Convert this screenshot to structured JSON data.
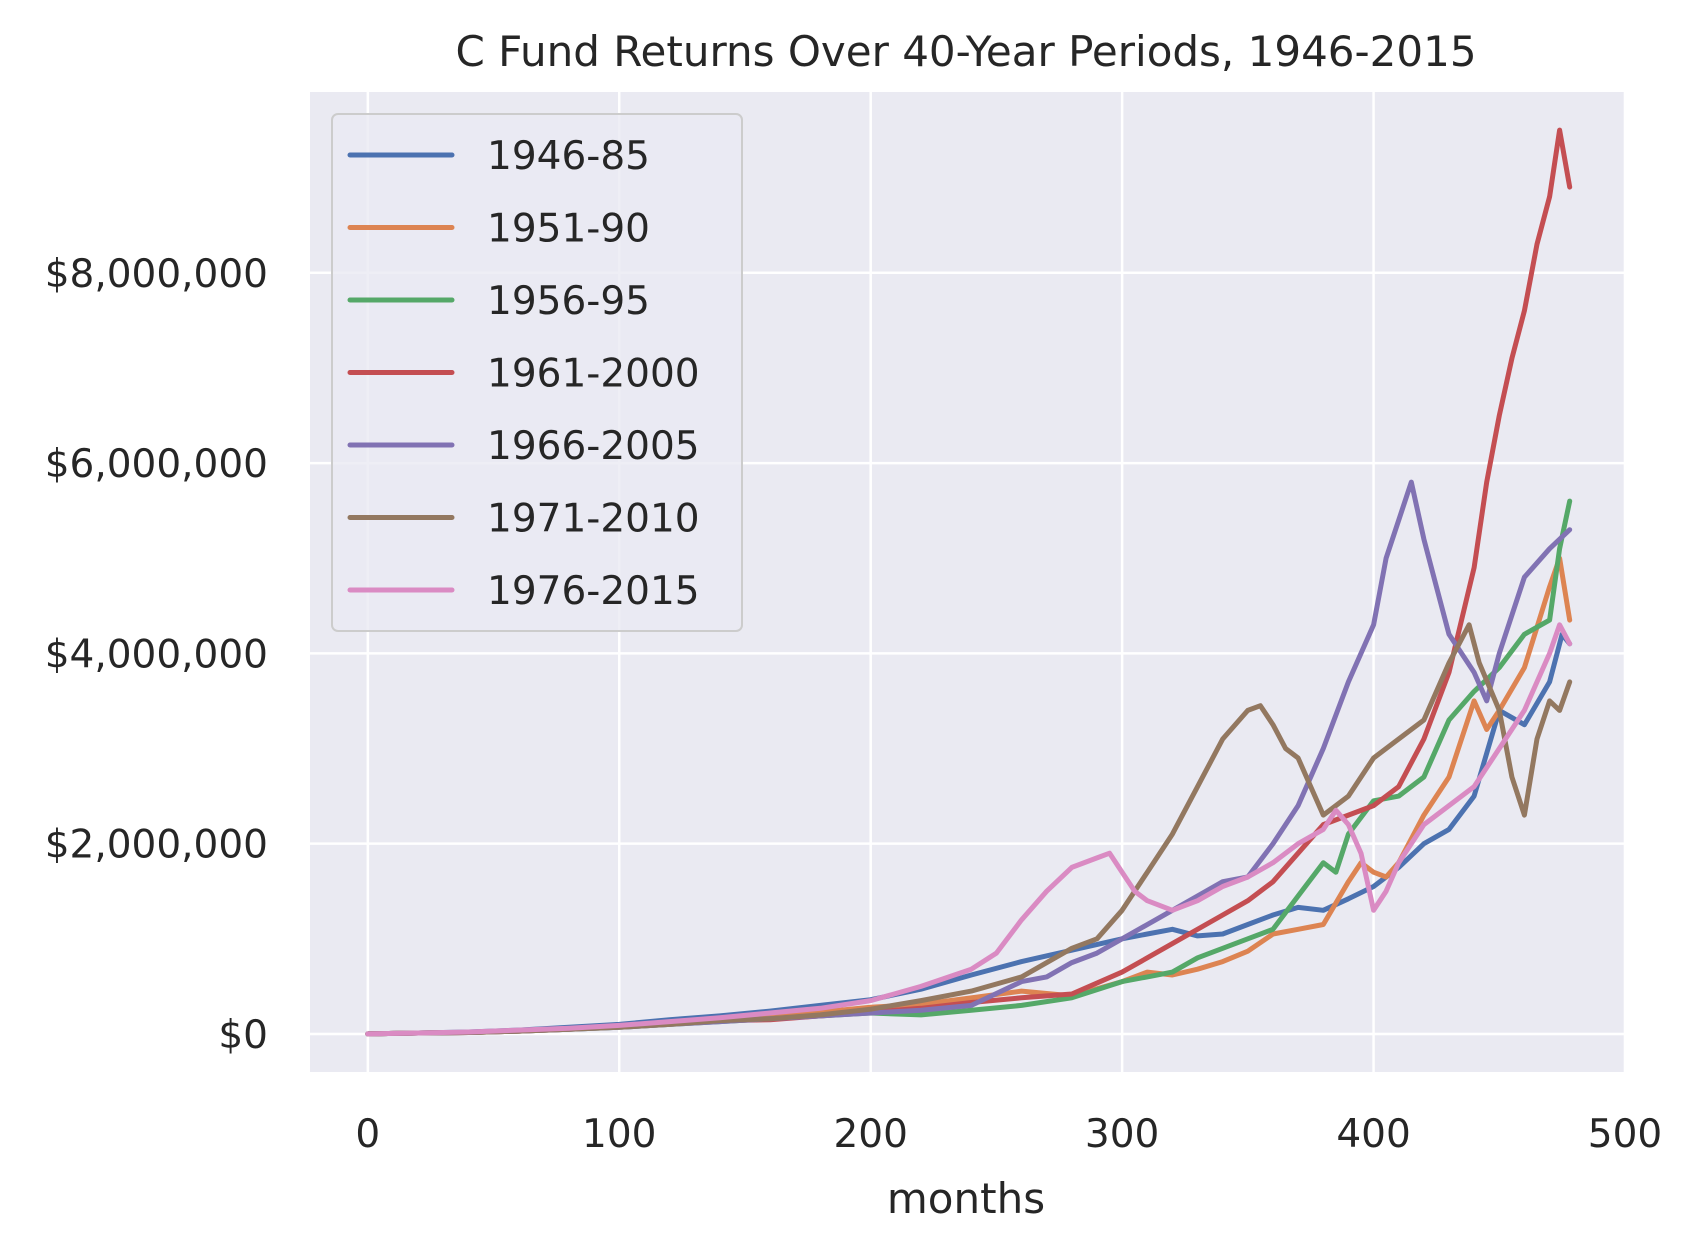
{
  "chart_data": {
    "type": "line",
    "title": "C Fund Returns Over 40-Year Periods, 1946-2015",
    "xlabel": "months",
    "ylabel": "",
    "xlim": [
      -23,
      500
    ],
    "ylim": [
      -400000,
      9900000
    ],
    "x_ticks": [
      0,
      100,
      200,
      300,
      400,
      500
    ],
    "x_tick_labels": [
      "0",
      "100",
      "200",
      "300",
      "400",
      "500"
    ],
    "y_ticks": [
      0,
      2000000,
      4000000,
      6000000,
      8000000
    ],
    "y_tick_labels": [
      "$0",
      "$2,000,000",
      "$4,000,000",
      "$6,000,000",
      "$8,000,000"
    ],
    "grid": true,
    "legend": {
      "position": "top-left"
    },
    "series": [
      {
        "name": "1946-85",
        "color": "#4c72b0",
        "points": [
          [
            0,
            0
          ],
          [
            20,
            10000
          ],
          [
            40,
            20000
          ],
          [
            60,
            40000
          ],
          [
            80,
            70000
          ],
          [
            100,
            100000
          ],
          [
            120,
            150000
          ],
          [
            140,
            190000
          ],
          [
            160,
            240000
          ],
          [
            180,
            300000
          ],
          [
            200,
            360000
          ],
          [
            220,
            470000
          ],
          [
            240,
            620000
          ],
          [
            260,
            760000
          ],
          [
            280,
            880000
          ],
          [
            300,
            1000000
          ],
          [
            310,
            1050000
          ],
          [
            320,
            1100000
          ],
          [
            330,
            1030000
          ],
          [
            340,
            1050000
          ],
          [
            350,
            1150000
          ],
          [
            360,
            1250000
          ],
          [
            370,
            1330000
          ],
          [
            380,
            1300000
          ],
          [
            390,
            1420000
          ],
          [
            400,
            1550000
          ],
          [
            410,
            1750000
          ],
          [
            420,
            2000000
          ],
          [
            430,
            2150000
          ],
          [
            440,
            2500000
          ],
          [
            450,
            3400000
          ],
          [
            460,
            3250000
          ],
          [
            470,
            3700000
          ],
          [
            475,
            4200000
          ],
          [
            478,
            4100000
          ]
        ]
      },
      {
        "name": "1951-90",
        "color": "#dd8452",
        "points": [
          [
            0,
            0
          ],
          [
            20,
            10000
          ],
          [
            40,
            15000
          ],
          [
            60,
            30000
          ],
          [
            80,
            55000
          ],
          [
            100,
            80000
          ],
          [
            120,
            120000
          ],
          [
            140,
            150000
          ],
          [
            160,
            190000
          ],
          [
            180,
            230000
          ],
          [
            200,
            280000
          ],
          [
            220,
            310000
          ],
          [
            240,
            380000
          ],
          [
            260,
            450000
          ],
          [
            280,
            400000
          ],
          [
            300,
            550000
          ],
          [
            310,
            650000
          ],
          [
            320,
            620000
          ],
          [
            330,
            680000
          ],
          [
            340,
            760000
          ],
          [
            350,
            870000
          ],
          [
            360,
            1050000
          ],
          [
            370,
            1100000
          ],
          [
            380,
            1150000
          ],
          [
            390,
            1600000
          ],
          [
            395,
            1800000
          ],
          [
            400,
            1700000
          ],
          [
            405,
            1650000
          ],
          [
            410,
            1800000
          ],
          [
            420,
            2300000
          ],
          [
            430,
            2700000
          ],
          [
            440,
            3500000
          ],
          [
            445,
            3200000
          ],
          [
            450,
            3400000
          ],
          [
            460,
            3850000
          ],
          [
            470,
            4700000
          ],
          [
            474,
            5000000
          ],
          [
            478,
            4350000
          ]
        ]
      },
      {
        "name": "1956-95",
        "color": "#55a868",
        "points": [
          [
            0,
            0
          ],
          [
            20,
            10000
          ],
          [
            40,
            15000
          ],
          [
            60,
            30000
          ],
          [
            80,
            50000
          ],
          [
            100,
            70000
          ],
          [
            120,
            100000
          ],
          [
            140,
            130000
          ],
          [
            160,
            160000
          ],
          [
            180,
            190000
          ],
          [
            200,
            220000
          ],
          [
            220,
            200000
          ],
          [
            240,
            250000
          ],
          [
            260,
            300000
          ],
          [
            280,
            380000
          ],
          [
            300,
            550000
          ],
          [
            310,
            600000
          ],
          [
            320,
            650000
          ],
          [
            330,
            800000
          ],
          [
            340,
            900000
          ],
          [
            350,
            1000000
          ],
          [
            360,
            1100000
          ],
          [
            370,
            1450000
          ],
          [
            380,
            1800000
          ],
          [
            385,
            1700000
          ],
          [
            390,
            2100000
          ],
          [
            400,
            2450000
          ],
          [
            410,
            2500000
          ],
          [
            420,
            2700000
          ],
          [
            430,
            3300000
          ],
          [
            440,
            3600000
          ],
          [
            450,
            3850000
          ],
          [
            460,
            4200000
          ],
          [
            470,
            4350000
          ],
          [
            474,
            5100000
          ],
          [
            478,
            5600000
          ]
        ]
      },
      {
        "name": "1961-2000",
        "color": "#c44e52",
        "points": [
          [
            0,
            0
          ],
          [
            20,
            10000
          ],
          [
            40,
            15000
          ],
          [
            60,
            30000
          ],
          [
            80,
            50000
          ],
          [
            100,
            80000
          ],
          [
            120,
            110000
          ],
          [
            140,
            140000
          ],
          [
            160,
            150000
          ],
          [
            180,
            190000
          ],
          [
            200,
            230000
          ],
          [
            220,
            270000
          ],
          [
            240,
            330000
          ],
          [
            260,
            380000
          ],
          [
            280,
            420000
          ],
          [
            300,
            650000
          ],
          [
            320,
            950000
          ],
          [
            340,
            1250000
          ],
          [
            350,
            1400000
          ],
          [
            360,
            1600000
          ],
          [
            370,
            1900000
          ],
          [
            380,
            2200000
          ],
          [
            390,
            2300000
          ],
          [
            400,
            2400000
          ],
          [
            410,
            2600000
          ],
          [
            420,
            3100000
          ],
          [
            430,
            3800000
          ],
          [
            440,
            4900000
          ],
          [
            445,
            5800000
          ],
          [
            450,
            6500000
          ],
          [
            455,
            7100000
          ],
          [
            460,
            7600000
          ],
          [
            465,
            8300000
          ],
          [
            470,
            8800000
          ],
          [
            474,
            9500000
          ],
          [
            478,
            8900000
          ]
        ]
      },
      {
        "name": "1966-2005",
        "color": "#8172b3",
        "points": [
          [
            0,
            0
          ],
          [
            20,
            10000
          ],
          [
            40,
            15000
          ],
          [
            60,
            30000
          ],
          [
            80,
            50000
          ],
          [
            100,
            70000
          ],
          [
            120,
            100000
          ],
          [
            140,
            130000
          ],
          [
            160,
            160000
          ],
          [
            180,
            190000
          ],
          [
            200,
            220000
          ],
          [
            220,
            250000
          ],
          [
            240,
            300000
          ],
          [
            260,
            550000
          ],
          [
            270,
            600000
          ],
          [
            280,
            750000
          ],
          [
            290,
            850000
          ],
          [
            300,
            1000000
          ],
          [
            320,
            1300000
          ],
          [
            340,
            1600000
          ],
          [
            350,
            1650000
          ],
          [
            360,
            2000000
          ],
          [
            370,
            2400000
          ],
          [
            380,
            3000000
          ],
          [
            390,
            3700000
          ],
          [
            400,
            4300000
          ],
          [
            405,
            5000000
          ],
          [
            410,
            5400000
          ],
          [
            415,
            5800000
          ],
          [
            420,
            5200000
          ],
          [
            425,
            4700000
          ],
          [
            430,
            4200000
          ],
          [
            440,
            3800000
          ],
          [
            445,
            3500000
          ],
          [
            450,
            4000000
          ],
          [
            460,
            4800000
          ],
          [
            470,
            5100000
          ],
          [
            478,
            5300000
          ]
        ]
      },
      {
        "name": "1971-2010",
        "color": "#937860",
        "points": [
          [
            0,
            0
          ],
          [
            20,
            10000
          ],
          [
            40,
            15000
          ],
          [
            60,
            30000
          ],
          [
            80,
            50000
          ],
          [
            100,
            70000
          ],
          [
            120,
            100000
          ],
          [
            140,
            140000
          ],
          [
            160,
            160000
          ],
          [
            180,
            200000
          ],
          [
            200,
            260000
          ],
          [
            220,
            350000
          ],
          [
            240,
            450000
          ],
          [
            260,
            600000
          ],
          [
            280,
            900000
          ],
          [
            290,
            1000000
          ],
          [
            300,
            1300000
          ],
          [
            310,
            1700000
          ],
          [
            320,
            2100000
          ],
          [
            330,
            2600000
          ],
          [
            340,
            3100000
          ],
          [
            350,
            3400000
          ],
          [
            355,
            3450000
          ],
          [
            360,
            3250000
          ],
          [
            365,
            3000000
          ],
          [
            370,
            2900000
          ],
          [
            375,
            2600000
          ],
          [
            380,
            2300000
          ],
          [
            390,
            2500000
          ],
          [
            400,
            2900000
          ],
          [
            410,
            3100000
          ],
          [
            420,
            3300000
          ],
          [
            430,
            3900000
          ],
          [
            438,
            4300000
          ],
          [
            442,
            3900000
          ],
          [
            450,
            3400000
          ],
          [
            455,
            2700000
          ],
          [
            460,
            2300000
          ],
          [
            465,
            3100000
          ],
          [
            470,
            3500000
          ],
          [
            474,
            3400000
          ],
          [
            478,
            3700000
          ]
        ]
      },
      {
        "name": "1976-2015",
        "color": "#da8bc3",
        "points": [
          [
            0,
            0
          ],
          [
            20,
            10000
          ],
          [
            40,
            20000
          ],
          [
            60,
            40000
          ],
          [
            80,
            60000
          ],
          [
            100,
            90000
          ],
          [
            120,
            130000
          ],
          [
            140,
            170000
          ],
          [
            160,
            220000
          ],
          [
            180,
            270000
          ],
          [
            200,
            350000
          ],
          [
            220,
            500000
          ],
          [
            240,
            680000
          ],
          [
            250,
            850000
          ],
          [
            260,
            1200000
          ],
          [
            270,
            1500000
          ],
          [
            280,
            1750000
          ],
          [
            290,
            1850000
          ],
          [
            295,
            1900000
          ],
          [
            300,
            1700000
          ],
          [
            305,
            1500000
          ],
          [
            310,
            1400000
          ],
          [
            320,
            1300000
          ],
          [
            330,
            1400000
          ],
          [
            340,
            1550000
          ],
          [
            350,
            1650000
          ],
          [
            360,
            1800000
          ],
          [
            370,
            2000000
          ],
          [
            380,
            2150000
          ],
          [
            385,
            2350000
          ],
          [
            390,
            2200000
          ],
          [
            395,
            1900000
          ],
          [
            400,
            1300000
          ],
          [
            405,
            1500000
          ],
          [
            410,
            1800000
          ],
          [
            420,
            2200000
          ],
          [
            430,
            2400000
          ],
          [
            440,
            2600000
          ],
          [
            450,
            3000000
          ],
          [
            460,
            3400000
          ],
          [
            470,
            4000000
          ],
          [
            474,
            4300000
          ],
          [
            478,
            4100000
          ]
        ]
      }
    ]
  }
}
